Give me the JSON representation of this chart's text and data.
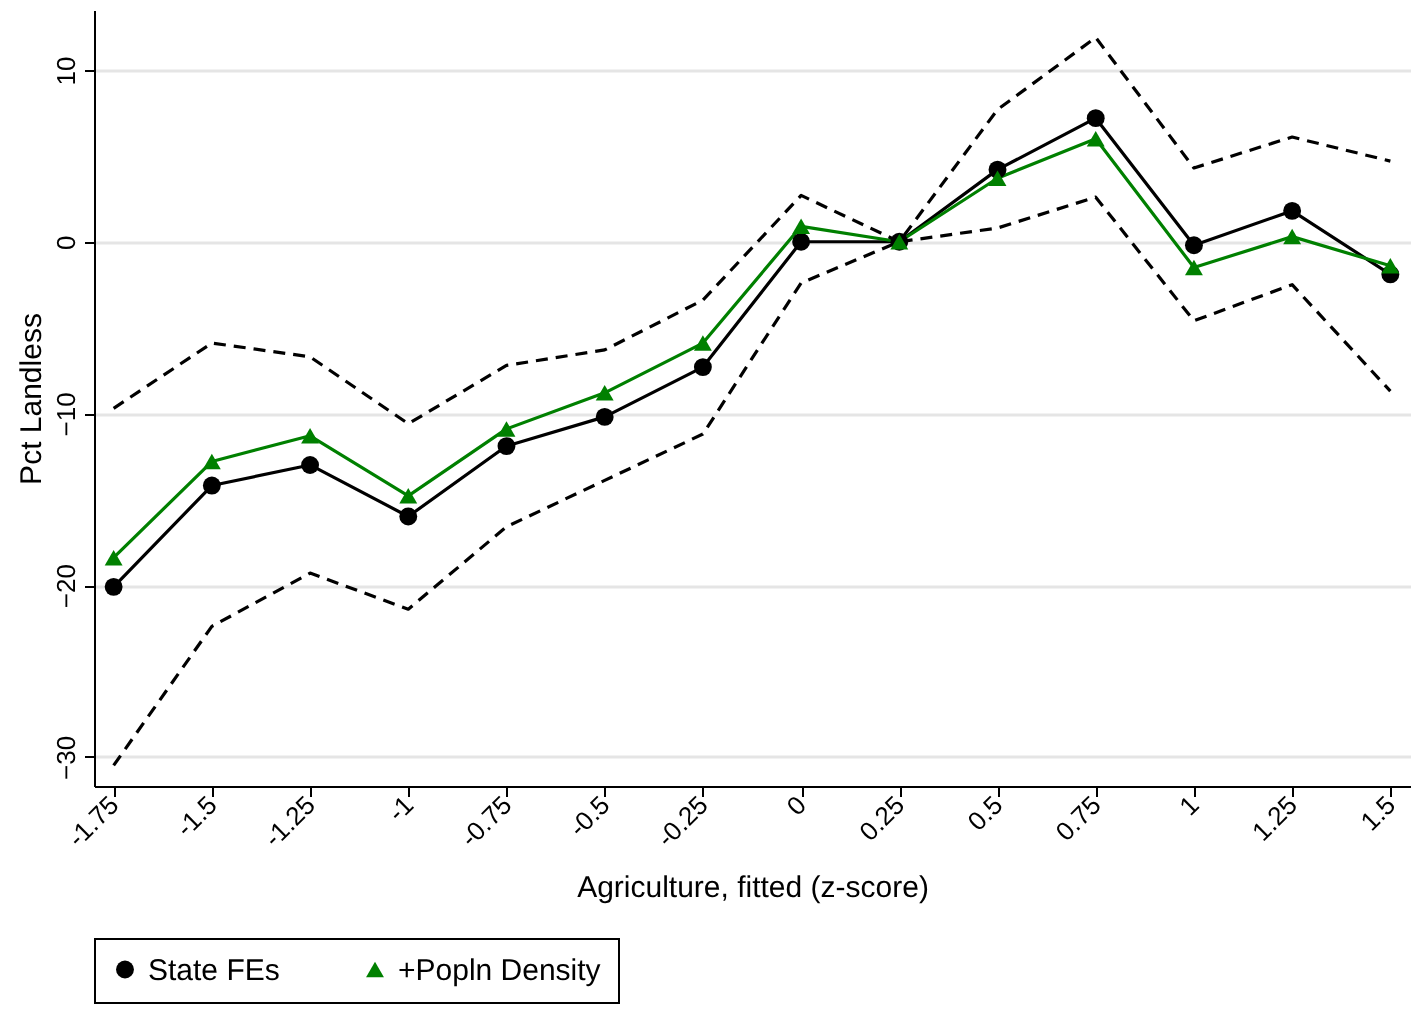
{
  "chart_data": {
    "type": "line",
    "xlabel": "Agriculture, fitted (z-score)",
    "ylabel": "Pct Landless",
    "categories": [
      "-1.75",
      "-1.5",
      "-1.25",
      "-1",
      "-0.75",
      "-0.5",
      "-0.25",
      "0",
      "0.25",
      "0.5",
      "0.75",
      "1",
      "1.25",
      "1.5"
    ],
    "series": [
      {
        "name": "State FEs",
        "color": "#000000",
        "marker": "circle",
        "line_style": "solid",
        "values": [
          -20.1,
          -14.2,
          -13.0,
          -16.0,
          -11.9,
          -10.2,
          -7.3,
          0.0,
          0.0,
          4.2,
          7.2,
          -0.2,
          1.8,
          -1.9
        ]
      },
      {
        "name": "+Popln Density",
        "color": "#008000",
        "marker": "triangle",
        "line_style": "solid",
        "values": [
          -18.4,
          -12.8,
          -11.3,
          -14.8,
          -10.9,
          -8.8,
          -5.9,
          0.9,
          0.0,
          3.7,
          6.0,
          -1.5,
          0.3,
          -1.4
        ]
      },
      {
        "color": "#000000",
        "marker": "none",
        "line_style": "dashed",
        "values": [
          -9.7,
          -5.9,
          -6.7,
          -10.6,
          -7.2,
          -6.3,
          -3.4,
          2.7,
          0.0,
          7.7,
          11.9,
          4.3,
          6.1,
          4.7
        ]
      },
      {
        "color": "#000000",
        "marker": "none",
        "line_style": "dashed",
        "values": [
          -30.5,
          -22.4,
          -19.3,
          -21.4,
          -16.6,
          -13.9,
          -11.2,
          -2.4,
          0.0,
          0.8,
          2.6,
          -4.6,
          -2.5,
          -8.7
        ]
      }
    ],
    "ylim": [
      -31.7,
      13.5
    ],
    "yticks": [
      -30,
      -20,
      -10,
      0,
      10
    ],
    "grid": "y",
    "legend": "bottom"
  }
}
